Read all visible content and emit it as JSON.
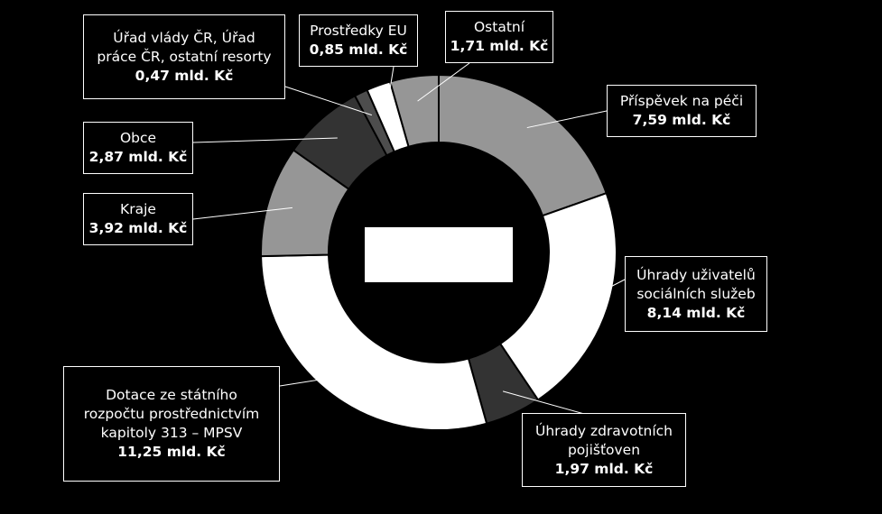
{
  "chart_data": {
    "type": "pie",
    "variant": "donut",
    "title": "",
    "center_label": "",
    "unit": "mld. Kč",
    "slices": [
      {
        "name": "Příspěvek na péči",
        "value": 7.59,
        "value_label": "7,59 mld. Kč",
        "color": "#969696"
      },
      {
        "name": "Úhrady uživatelů sociálních služeb",
        "value": 8.14,
        "value_label": "8,14 mld. Kč",
        "color": "#ffffff"
      },
      {
        "name": "Úhrady zdravotních pojišťoven",
        "value": 1.97,
        "value_label": "1,97 mld. Kč",
        "color": "#333333"
      },
      {
        "name": "Dotace ze státního rozpočtu prostřednictvím kapitoly 313 – MPSV",
        "value": 11.25,
        "value_label": "11,25 mld. Kč",
        "color": "#ffffff"
      },
      {
        "name": "Kraje",
        "value": 3.92,
        "value_label": "3,92 mld. Kč",
        "color": "#969696"
      },
      {
        "name": "Obce",
        "value": 2.87,
        "value_label": "2,87 mld. Kč",
        "color": "#333333"
      },
      {
        "name": "Úřad vlády ČR, Úřad práce ČR, ostatní resorty",
        "value": 0.47,
        "value_label": "0,47 mld. Kč",
        "color": "#4d4d4d"
      },
      {
        "name": "Prostředky EU",
        "value": 0.85,
        "value_label": "0,85 mld. Kč",
        "color": "#ffffff"
      },
      {
        "name": "Ostatní",
        "value": 1.71,
        "value_label": "1,71 mld. Kč",
        "color": "#969696"
      }
    ],
    "legend": "none",
    "labels": "callout-boxes"
  }
}
